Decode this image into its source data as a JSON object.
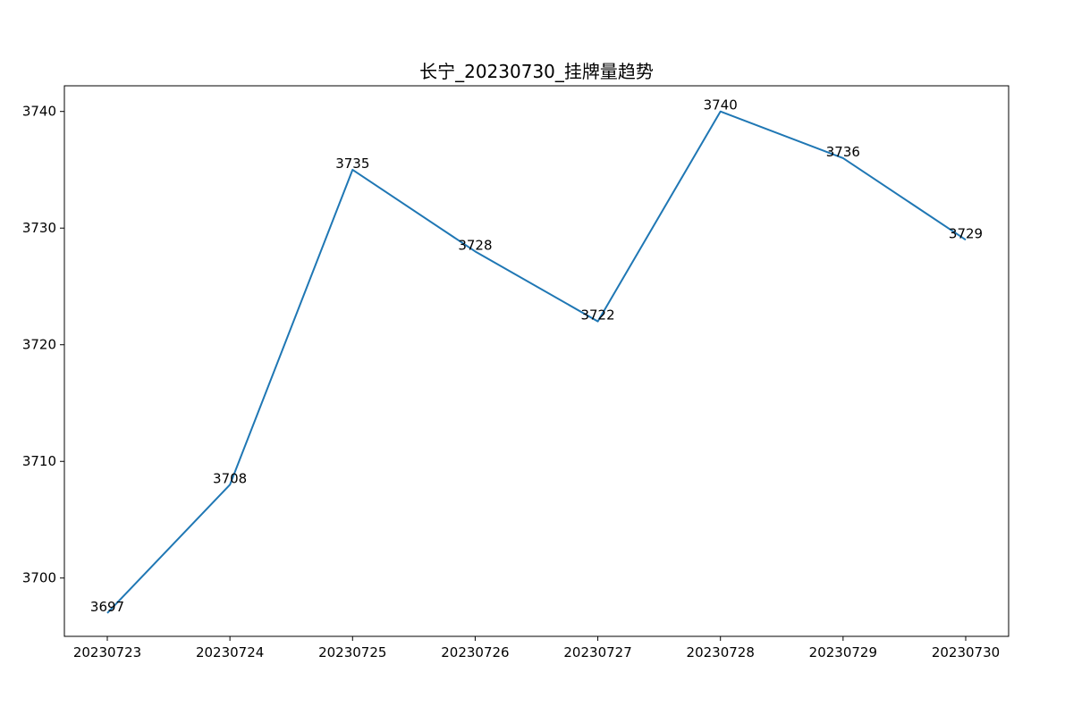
{
  "chart_data": {
    "type": "line",
    "title": "长宁_20230730_挂牌量趋势",
    "xlabel": "",
    "ylabel": "",
    "categories": [
      "20230723",
      "20230724",
      "20230725",
      "20230726",
      "20230727",
      "20230728",
      "20230729",
      "20230730"
    ],
    "series": [
      {
        "values": [
          3697,
          3708,
          3735,
          3728,
          3722,
          3740,
          3736,
          3729
        ],
        "color": "#1f77b4"
      }
    ],
    "ylim": [
      3695,
      3742.2
    ],
    "yticks": [
      3700,
      3710,
      3720,
      3730,
      3740
    ],
    "grid": false,
    "legend": "none"
  }
}
